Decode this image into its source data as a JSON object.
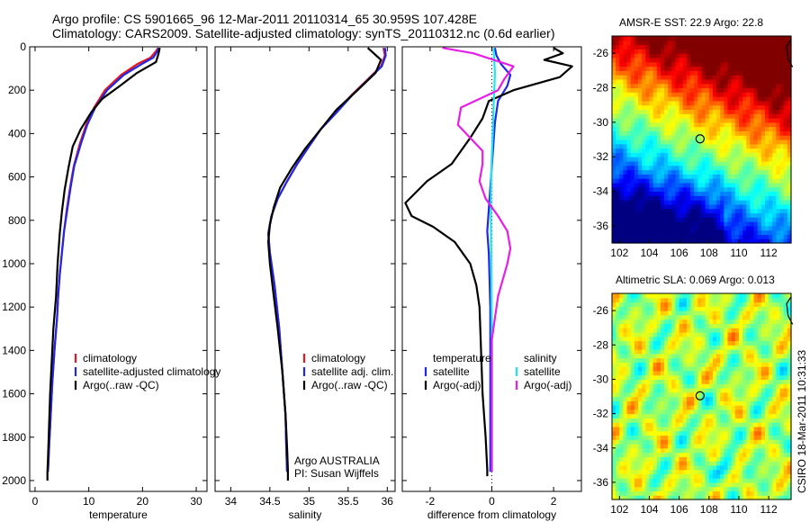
{
  "header": {
    "line1": "Argo profile: CS 5901665_96 12-Mar-2011 20110314_65 30.959S 107.428E",
    "line2": "Climatology: CARS2009. Satellite-adjusted climatology: synTS_20110312.nc (0.6d earlier)"
  },
  "stamp": "CSIRO 18-Mar-2011 10:31:33",
  "colors": {
    "climatology": "#e8141e",
    "satellite": "#1e28e6",
    "argo": "#000000",
    "satellite_sal": "#1ee6f0",
    "argo_sal": "#e61ee6"
  },
  "chart_data": [
    {
      "type": "line",
      "xlabel": "temperature",
      "ylim": [
        2050,
        0
      ],
      "xlim": [
        -1,
        32
      ],
      "xticks": [
        0,
        10,
        20,
        30
      ],
      "yticks": [
        0,
        200,
        400,
        600,
        800,
        1000,
        1200,
        1400,
        1600,
        1800,
        2000
      ],
      "legend": {
        "placement": "lower-middle",
        "entries": [
          "climatology",
          "satellite-adjusted climatology",
          "Argo(..raw -QC)"
        ]
      },
      "series": [
        {
          "name": "climatology",
          "color": "#e8141e",
          "x": [
            22.9,
            22.5,
            21.5,
            19,
            16,
            13,
            11,
            9.5,
            8.3,
            7.2,
            6.5,
            5.9,
            5.4,
            5,
            4.6,
            4.3,
            4.1,
            3.6,
            3.2,
            2.9,
            2.6,
            2.4
          ],
          "y": [
            5,
            20,
            50,
            80,
            130,
            200,
            280,
            360,
            450,
            550,
            650,
            750,
            850,
            950,
            1050,
            1150,
            1250,
            1400,
            1550,
            1700,
            1850,
            1960
          ]
        },
        {
          "name": "satellite-adjusted climatology",
          "color": "#1e28e6",
          "x": [
            23,
            22.8,
            22,
            19.8,
            16.5,
            13.4,
            11.2,
            9.7,
            8.5,
            7.3,
            6.6,
            6,
            5.4,
            5,
            4.6,
            4.3,
            4.1,
            3.6,
            3.2,
            2.9,
            2.6,
            2.4
          ],
          "y": [
            5,
            20,
            50,
            80,
            130,
            200,
            280,
            360,
            450,
            550,
            650,
            750,
            850,
            950,
            1050,
            1150,
            1250,
            1400,
            1550,
            1700,
            1850,
            1960
          ]
        },
        {
          "name": "Argo(..raw -QC)",
          "color": "#000000",
          "x": [
            23.2,
            23,
            22.5,
            19,
            15.8,
            12.5,
            10.5,
            8.5,
            7,
            6.2,
            5.5,
            5,
            4.6,
            4.2,
            3.9,
            3.4,
            3.1,
            2.8,
            2.6,
            2.4,
            2.3,
            2.3
          ],
          "y": [
            5,
            30,
            70,
            120,
            180,
            240,
            300,
            380,
            460,
            560,
            660,
            760,
            860,
            1000,
            1150,
            1300,
            1450,
            1600,
            1750,
            1900,
            1960,
            2000
          ]
        }
      ]
    },
    {
      "type": "line",
      "xlabel": "salinity",
      "ylim": [
        2050,
        0
      ],
      "xlim": [
        33.8,
        36.1
      ],
      "xticks": [
        34,
        34.5,
        35,
        35.5,
        36
      ],
      "xticklabels": [
        "34",
        "34.5",
        "35",
        "35.5",
        "36"
      ],
      "legend": {
        "placement": "lower-middle",
        "entries": [
          "climatology",
          "satellite adj. clim.",
          "Argo(..raw -QC)"
        ]
      },
      "annotations": [
        "Argo AUSTRALIA",
        "PI: Susan Wijffels"
      ],
      "series": [
        {
          "name": "climatology",
          "color": "#e8141e",
          "x": [
            35.95,
            35.97,
            35.92,
            35.75,
            35.55,
            35.35,
            35.15,
            35,
            34.85,
            34.72,
            34.6,
            34.52,
            34.48,
            34.5,
            34.56,
            34.62,
            34.66,
            34.7,
            34.71,
            34.72
          ],
          "y": [
            5,
            40,
            90,
            150,
            220,
            300,
            380,
            460,
            540,
            620,
            700,
            780,
            860,
            950,
            1100,
            1300,
            1500,
            1700,
            1850,
            1960
          ]
        },
        {
          "name": "satellite adj. clim.",
          "color": "#1e28e6",
          "x": [
            35.97,
            35.98,
            35.93,
            35.76,
            35.56,
            35.36,
            35.15,
            35,
            34.85,
            34.72,
            34.6,
            34.52,
            34.48,
            34.5,
            34.56,
            34.62,
            34.66,
            34.7,
            34.71,
            34.72
          ],
          "y": [
            5,
            40,
            90,
            150,
            220,
            300,
            380,
            460,
            540,
            620,
            700,
            780,
            860,
            950,
            1100,
            1300,
            1500,
            1700,
            1850,
            1960
          ]
        },
        {
          "name": "Argo(..raw -QC)",
          "color": "#000000",
          "x": [
            35.75,
            35.92,
            35.85,
            35.62,
            35.35,
            35.15,
            34.95,
            34.78,
            34.63,
            34.55,
            34.5,
            34.48,
            34.5,
            34.55,
            34.6,
            34.66,
            34.7,
            34.72,
            34.73,
            34.73
          ],
          "y": [
            5,
            60,
            120,
            200,
            290,
            380,
            470,
            560,
            650,
            740,
            820,
            900,
            1000,
            1150,
            1300,
            1500,
            1700,
            1850,
            1950,
            2000
          ]
        }
      ]
    },
    {
      "type": "line",
      "xlabel": "difference from climatology",
      "ylim": [
        2050,
        0
      ],
      "xlim": [
        -2.9,
        2.9
      ],
      "xticks": [
        -2,
        0,
        2
      ],
      "legend": {
        "placement": "lower-middle",
        "columns": [
          {
            "heading": "temperature",
            "entries": [
              "satellite",
              "Argo(-adj)"
            ]
          },
          {
            "heading": "salinity",
            "entries": [
              "satellite",
              "Argo(-adj)"
            ]
          }
        ]
      },
      "series": [
        {
          "name": "satellite",
          "group": "temperature",
          "color": "#1e28e6",
          "x": [
            0.1,
            0.15,
            0.3,
            0.6,
            0.5,
            0.2,
            0.1,
            0.05,
            0,
            -0.05,
            -0.1,
            -0.15,
            -0.1,
            -0.05,
            -0.05,
            -0.05,
            -0.05
          ],
          "y": [
            5,
            40,
            80,
            130,
            180,
            250,
            350,
            450,
            550,
            650,
            750,
            850,
            950,
            1200,
            1500,
            1800,
            1960
          ]
        },
        {
          "name": "Argo(-adj)",
          "group": "temperature",
          "color": "#000000",
          "x": [
            2,
            2.3,
            1.7,
            2.6,
            2.2,
            0.7,
            -0.1,
            -0.3,
            -0.7,
            -1.3,
            -2.1,
            -2.8,
            -2.6,
            -1.9,
            -1.2,
            -0.7,
            -0.5,
            -0.4,
            -0.35,
            -0.3,
            -0.2,
            -0.15,
            -0.15
          ],
          "y": [
            5,
            30,
            60,
            90,
            140,
            200,
            250,
            330,
            420,
            540,
            620,
            720,
            780,
            830,
            900,
            1000,
            1100,
            1200,
            1400,
            1600,
            1800,
            1950,
            1980
          ]
        },
        {
          "name": "satellite",
          "group": "salinity",
          "color": "#1ee6f0",
          "x": [
            0.05,
            0.08,
            0.1,
            0.08,
            0.05,
            0.03,
            0,
            -0.02,
            -0.03,
            -0.03,
            -0.02,
            0,
            0,
            0,
            0
          ],
          "y": [
            5,
            60,
            120,
            200,
            300,
            400,
            500,
            600,
            700,
            800,
            1000,
            1300,
            1600,
            1800,
            1960
          ]
        },
        {
          "name": "Argo(-adj)",
          "group": "salinity",
          "color": "#e61ee6",
          "x": [
            -1.6,
            -0.6,
            0.7,
            0.4,
            0.2,
            -1,
            -1.1,
            -0.7,
            -0.3,
            -0.3,
            -0.4,
            -0.2,
            0.2,
            0.5,
            0.6,
            0.5,
            0.2,
            0,
            0,
            0
          ],
          "y": [
            5,
            30,
            90,
            150,
            200,
            280,
            360,
            420,
            480,
            540,
            620,
            700,
            780,
            850,
            930,
            1000,
            1150,
            1350,
            1600,
            1960
          ]
        }
      ]
    },
    {
      "type": "heatmap",
      "title": "AMSR-E SST: 22.9 Argo: 22.8",
      "xlim": [
        101.5,
        113.5
      ],
      "ylim": [
        -37,
        -25
      ],
      "xticks": [
        102,
        104,
        106,
        108,
        110,
        112
      ],
      "yticks": [
        -26,
        -28,
        -30,
        -32,
        -34,
        -36
      ],
      "marker": {
        "lon": 107.4,
        "lat": -30.96
      },
      "colormap": "jet"
    },
    {
      "type": "heatmap",
      "title": "Altimetric SLA: 0.069 Argo: 0.013",
      "xlim": [
        101.5,
        113.5
      ],
      "ylim": [
        -37,
        -25
      ],
      "xticks": [
        102,
        104,
        106,
        108,
        110,
        112
      ],
      "yticks": [
        -26,
        -28,
        -30,
        -32,
        -34,
        -36
      ],
      "marker": {
        "lon": 107.4,
        "lat": -30.96
      },
      "colormap": "jet"
    }
  ]
}
